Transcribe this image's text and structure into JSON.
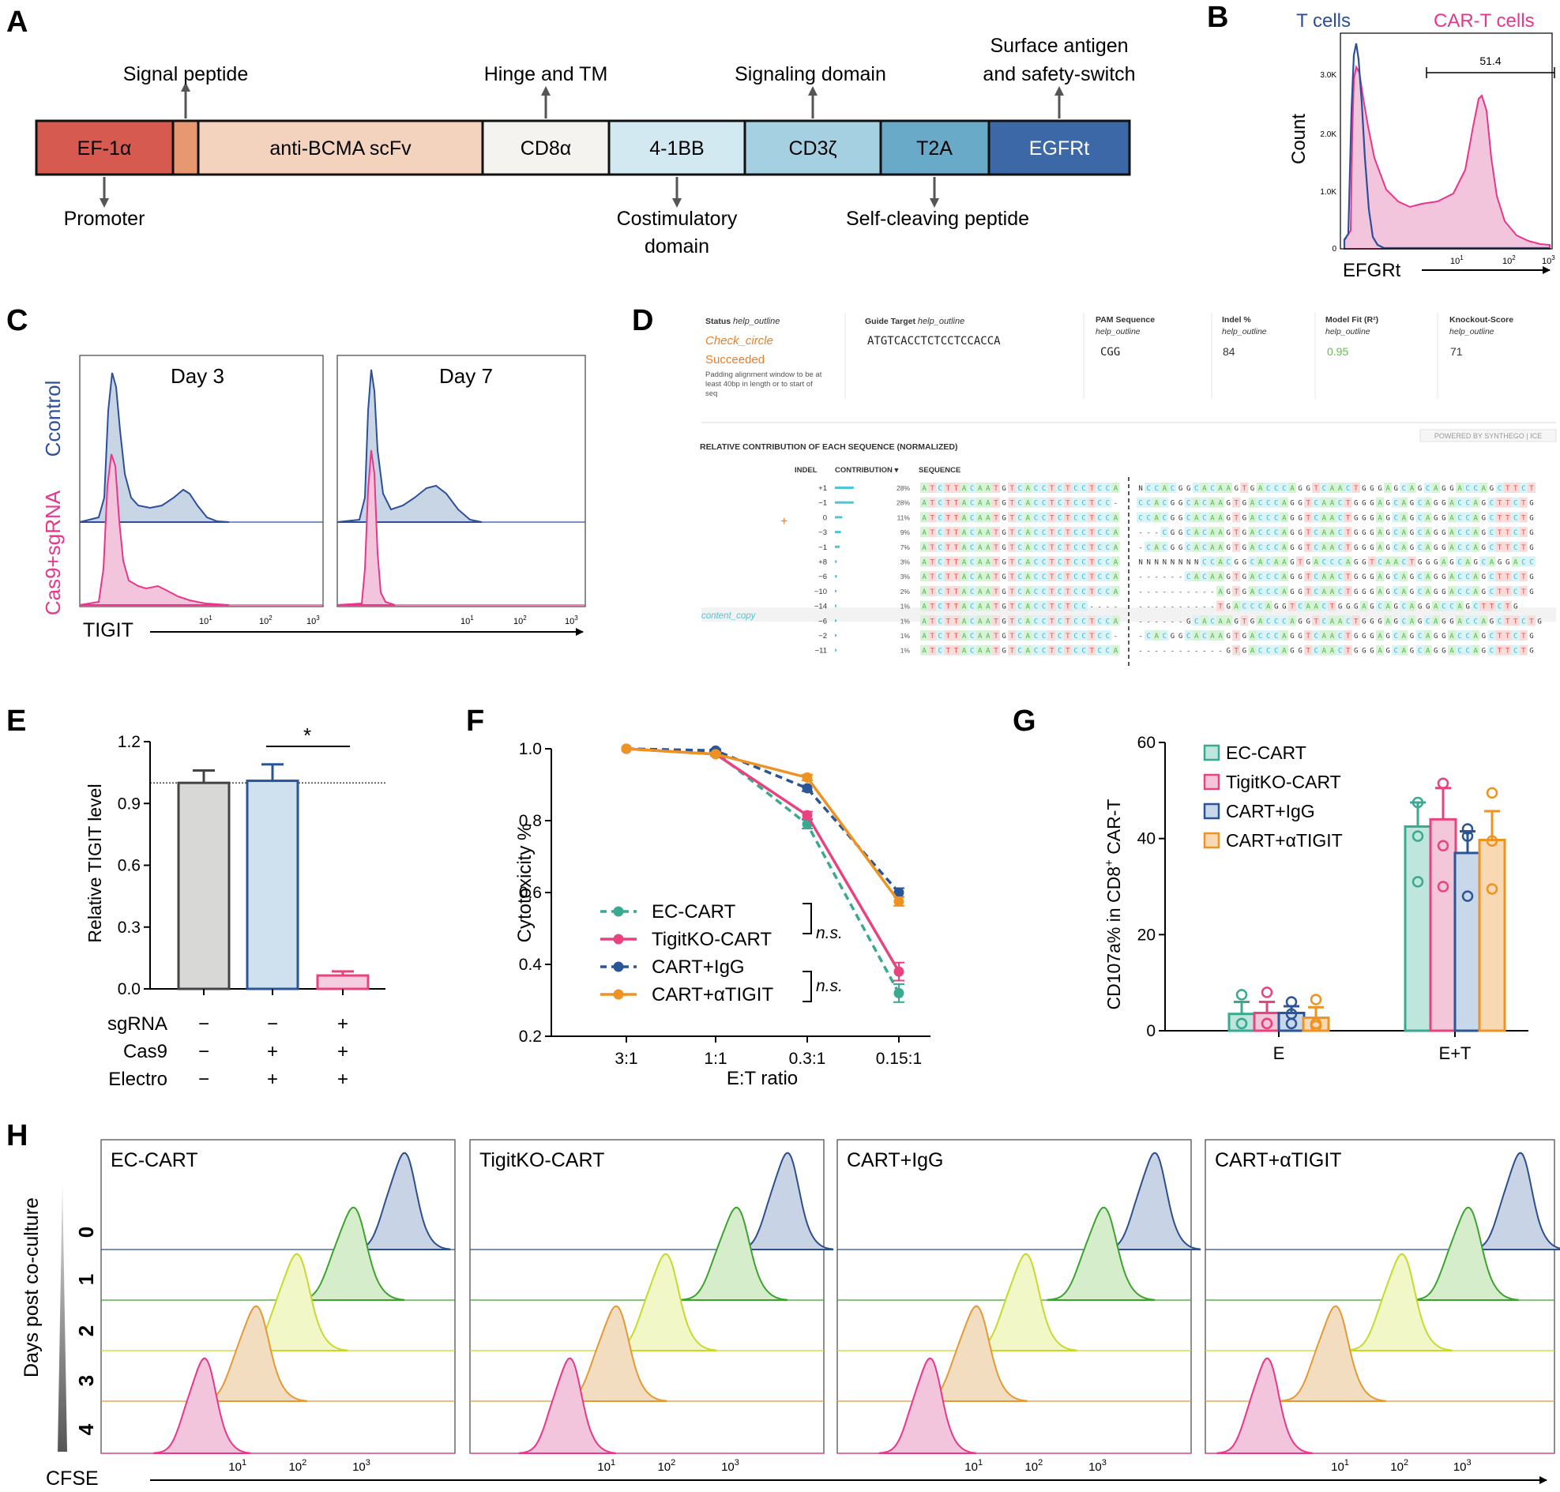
{
  "panels": {
    "A": "A",
    "B": "B",
    "C": "C",
    "D": "D",
    "E": "E",
    "F": "F",
    "G": "G",
    "H": "H"
  },
  "colors": {
    "efp": "#d65a4f",
    "sig": "#e79870",
    "scfv": "#f3d3bd",
    "cd8": "#f5f3ef",
    "bb": "#d3e9f1",
    "cd3": "#a5d0e1",
    "t2a": "#6aaac9",
    "egfr": "#3c68a8",
    "tcell": "#2d4f9a",
    "cart": "#e8368b",
    "ec": "#3aa992",
    "ko": "#e8437f",
    "igg": "#2a5596",
    "anti": "#ee9322",
    "day0": "#2d4f8a",
    "day1": "#3ca32f",
    "day2": "#c7d92b",
    "day3": "#e39a35",
    "day4": "#e8368b"
  },
  "panelA": {
    "segments": [
      "EF-1α",
      "anti-BCMA scFv",
      "CD8α",
      "4-1BB",
      "CD3ζ",
      "T2A",
      "EGFRt"
    ],
    "labels": {
      "signal": "Signal peptide",
      "hinge": "Hinge and TM",
      "signaling": "Signaling domain",
      "surface1": "Surface antigen",
      "surface2": "and safety-switch",
      "promoter": "Promoter",
      "costim1": "Costimulatory",
      "costim2": "domain",
      "selfcleave": "Self-cleaving peptide"
    }
  },
  "panelB": {
    "legend_t": "T cells",
    "legend_cart": "CAR-T cells",
    "gate": "51.4",
    "ylabel": "Count",
    "xlabel": "EFGRt",
    "yticks": [
      "0",
      "1.0K",
      "2.0K",
      "3.0K"
    ],
    "xticks": [
      "10",
      "10",
      "10"
    ],
    "xexp": [
      "1",
      "2",
      "3"
    ]
  },
  "panelC": {
    "day3": "Day 3",
    "day7": "Day 7",
    "ylab_ctrl": "Ccontrol",
    "ylab_sg": "Cas9+sgRNA",
    "xlabel": "TIGIT",
    "xticks": [
      "10",
      "10",
      "10"
    ],
    "xexp": [
      "1",
      "2",
      "3"
    ]
  },
  "panelD": {
    "header": {
      "status_t": "Status",
      "guide_t": "Guide Target",
      "pam_t": "PAM Sequence",
      "indel_t": "Indel %",
      "fit_t": "Model Fit (R²)",
      "ko_t": "Knockout-Score",
      "help": "help_outline",
      "check": "Check_circle",
      "succeeded": "Succeeded",
      "note1": "Padding alignment window to be at",
      "note2": "least 40bp in length or to start of",
      "note3": "seq",
      "guide": "ATGTCACCTCTCCTCCACCA",
      "pam": "CGG",
      "indel": "84",
      "fit": "0.95",
      "ko": "71"
    },
    "section_title": "RELATIVE CONTRIBUTION OF EACH SEQUENCE (NORMALIZED)",
    "brand": "POWERED BY  SYNTHEGO | ICE",
    "col_indel": "INDEL",
    "col_contrib": "CONTRIBUTION ▾",
    "col_seq": "SEQUENCE",
    "copy": "content_copy",
    "plus": "+",
    "rows": [
      {
        "indel": "+1",
        "pct": "28%",
        "contrib": 28,
        "left": "ATCTTACAATGTCACCTCTCCTCCA",
        "right": "NCCACGGCACAAGTGACCCAGGTCAACTGGGAGCAGCAGGACCAGCTTCT"
      },
      {
        "indel": "−1",
        "pct": "28%",
        "contrib": 28,
        "left": "ATCTTACAATGTCACCTCTCCTCC-",
        "right": "CCACGGCACAAGTGACCCAGGTCAACTGGGAGCAGCAGGACCAGCTTCTG"
      },
      {
        "indel": "0",
        "pct": "11%",
        "contrib": 11,
        "left": "ATCTTACAATGTCACCTCTCCTCCA",
        "right": "CCACGGCACAAGTGACCCAGGTCAACTGGGAGCAGCAGGACCAGCTTCTG"
      },
      {
        "indel": "−3",
        "pct": "9%",
        "contrib": 9,
        "left": "ATCTTACAATGTCACCTCTCCTCCA",
        "right": "---CGGCACAAGTGACCCAGGTCAACTGGGAGCAGCAGGACCAGCTTCTG"
      },
      {
        "indel": "−1",
        "pct": "7%",
        "contrib": 7,
        "left": "ATCTTACAATGTCACCTCTCCTCCA",
        "right": "-CACGGCACAAGTGACCCAGGTCAACTGGGAGCAGCAGGACCAGCTTCTG"
      },
      {
        "indel": "+8",
        "pct": "3%",
        "contrib": 3,
        "left": "ATCTTACAATGTCACCTCTCCTCCA",
        "right": "NNNNNNNNCCACGGCACAAGTGACCCAGGTCAACTGGGAGCAGCAGGACC"
      },
      {
        "indel": "−6",
        "pct": "3%",
        "contrib": 3,
        "left": "ATCTTACAATGTCACCTCTCCTCCA",
        "right": "------CACAAGTGACCCAGGTCAACTGGGAGCAGCAGGACCAGCTTCTG"
      },
      {
        "indel": "−10",
        "pct": "2%",
        "contrib": 2,
        "left": "ATCTTACAATGTCACCTCTCCTCCA",
        "right": "----------AGTGACCCAGGTCAACTGGGAGCAGCAGGACCAGCTTCTG"
      },
      {
        "indel": "−14",
        "pct": "1%",
        "contrib": 1,
        "left": "ATCTTACAATGTCACCTCTCC----",
        "right": "----------TGACCCAGGTCAACTGGGAGCAGCAGGACCAGCTTCTG"
      },
      {
        "indel": "−6",
        "pct": "1%",
        "contrib": 1,
        "left": "ATCTTACAATGTCACCTCTCCTCCA",
        "right": "------GCACAAGTGACCCAGGTCAACTGGGAGCAGCAGGACCAGCTTCTG"
      },
      {
        "indel": "−2",
        "pct": "1%",
        "contrib": 1,
        "left": "ATCTTACAATGTCACCTCTCCTCC-",
        "right": "-CACGGCACAAGTGACCCAGGTCAACTGGGAGCAGCAGGACCAGCTTCTG"
      },
      {
        "indel": "−11",
        "pct": "1%",
        "contrib": 1,
        "left": "ATCTTACAATGTCACCTCTCCTCCA",
        "right": "-----------GTGACCCAGGTCAACTGGGAGCAGCAGGACCAGCTTCTG"
      }
    ]
  },
  "chart_data": [
    {
      "id": "E",
      "type": "bar",
      "ylabel": "Relative TIGIT level",
      "ylim": [
        0,
        1.2
      ],
      "yticks": [
        "0.0",
        "0.3",
        "0.6",
        "0.9",
        "1.2"
      ],
      "values": [
        1.0,
        1.01,
        0.065
      ],
      "errors": [
        0.06,
        0.08,
        0.02
      ],
      "reference_line": 1.0,
      "significance": "*",
      "rows": [
        {
          "label": "sgRNA",
          "vals": [
            "−",
            "−",
            "+"
          ]
        },
        {
          "label": "Cas9",
          "vals": [
            "−",
            "+",
            "+"
          ]
        },
        {
          "label": "Electro",
          "vals": [
            "−",
            "+",
            "+"
          ]
        }
      ]
    },
    {
      "id": "F",
      "type": "line",
      "xlabel": "E:T ratio",
      "ylabel": "Cytotoxicity %",
      "categories": [
        "3:1",
        "1:1",
        "0.3:1",
        "0.15:1"
      ],
      "ylim": [
        0.2,
        1.0
      ],
      "yticks": [
        "0.2",
        "0.4",
        "0.6",
        "0.8",
        "1.0"
      ],
      "series": [
        {
          "name": "EC-CART",
          "values": [
            1.0,
            0.99,
            0.79,
            0.32
          ],
          "errors": [
            0.0,
            0.005,
            0.012,
            0.025
          ]
        },
        {
          "name": "TigitKO-CART",
          "values": [
            1.0,
            0.985,
            0.815,
            0.38
          ],
          "errors": [
            0.0,
            0.005,
            0.01,
            0.025
          ]
        },
        {
          "name": "CART+IgG",
          "values": [
            1.0,
            0.995,
            0.89,
            0.6
          ],
          "errors": [
            0.0,
            0.004,
            0.008,
            0.012
          ]
        },
        {
          "name": "CART+αTIGIT",
          "values": [
            1.0,
            0.985,
            0.92,
            0.575
          ],
          "errors": [
            0.0,
            0.004,
            0.008,
            0.012
          ]
        }
      ],
      "annotations": [
        "n.s.",
        "n.s."
      ]
    },
    {
      "id": "G",
      "type": "bar",
      "ylabel_pre": "CD107a% in CD8",
      "ylabel_sup": "+",
      "ylabel_post": " CAR-T",
      "ylim": [
        0,
        60
      ],
      "yticks": [
        "0",
        "20",
        "40",
        "60"
      ],
      "categories": [
        "E",
        "E+T"
      ],
      "series": [
        {
          "name": "EC-CART",
          "values": [
            3.5,
            42.5
          ],
          "errors": [
            2.5,
            5.0
          ],
          "points": [
            [
              7.5,
              1.5,
              1.5
            ],
            [
              47.5,
              40.5,
              31.0
            ]
          ]
        },
        {
          "name": "TigitKO-CART",
          "values": [
            3.7,
            44.0
          ],
          "errors": [
            2.3,
            6.5
          ],
          "points": [
            [
              8.0,
              1.5,
              1.5
            ],
            [
              51.5,
              38.5,
              30.0
            ]
          ]
        },
        {
          "name": "CART+IgG",
          "values": [
            3.7,
            37.0
          ],
          "errors": [
            1.4,
            4.5
          ],
          "points": [
            [
              6.0,
              3.5,
              1.5
            ],
            [
              42.0,
              40.5,
              28.0
            ]
          ]
        },
        {
          "name": "CART+αTIGIT",
          "values": [
            2.7,
            39.7
          ],
          "errors": [
            2.2,
            6.0
          ],
          "points": [
            [
              6.5,
              1.5,
              1.0
            ],
            [
              49.5,
              39.5,
              29.5
            ]
          ]
        }
      ]
    }
  ],
  "panelH": {
    "titles": [
      "EC-CART",
      "TigitKO-CART",
      "CART+IgG",
      "CART+αTIGIT"
    ],
    "days": [
      "0",
      "1",
      "2",
      "3",
      "4"
    ],
    "ylabel": "Days post co-culture",
    "xlabel": "CFSE",
    "xticks": [
      "10",
      "10",
      "10"
    ],
    "xexp": [
      "1",
      "2",
      "3"
    ]
  }
}
